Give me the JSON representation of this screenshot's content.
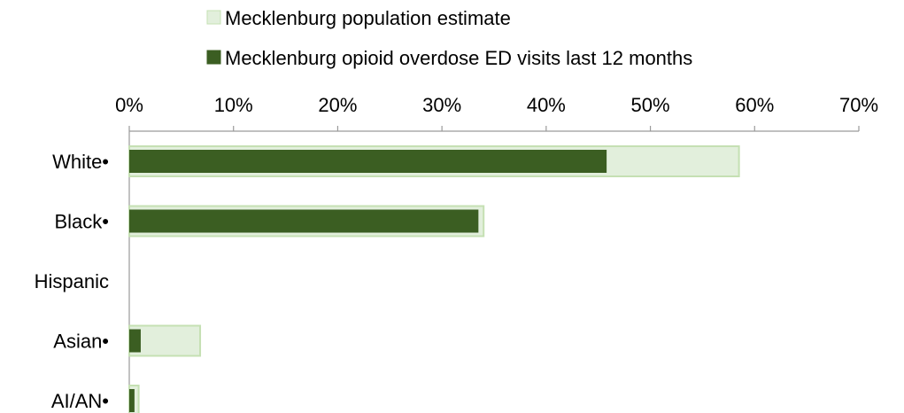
{
  "chart_data": {
    "type": "bar",
    "orientation": "horizontal",
    "title": "",
    "xlabel": "",
    "ylabel": "",
    "categories": [
      "White•",
      "Black•",
      "Hispanic",
      "Asian•",
      "AI/AN•"
    ],
    "series": [
      {
        "name": "Mecklenburg population estimate",
        "values": [
          58.5,
          34,
          null,
          6.8,
          0.9
        ],
        "fill": "#e2efdc",
        "stroke": "#c5e0b3"
      },
      {
        "name": "Mecklenburg opioid overdose ED visits last 12 months",
        "values": [
          45.8,
          33.5,
          null,
          1.1,
          0.5
        ],
        "fill": "#3b5e22",
        "stroke": "#3b5e22"
      }
    ],
    "xlim": [
      0,
      70
    ],
    "x_ticks": [
      0,
      10,
      20,
      30,
      40,
      50,
      60,
      70
    ],
    "x_tick_labels": [
      "0%",
      "10%",
      "20%",
      "30%",
      "40%",
      "50%",
      "60%",
      "70%"
    ],
    "x_axis_position": "top",
    "grid": false,
    "legend_position": "top"
  }
}
